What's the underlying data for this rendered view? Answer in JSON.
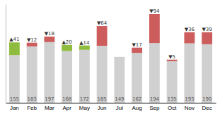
{
  "chart_data": {
    "type": "bar",
    "stacked": true,
    "data_labels": true,
    "tick_labels": "x",
    "categories": [
      "Jan",
      "Feb",
      "Mar",
      "Apr",
      "May",
      "Jun",
      "Jul",
      "Aug",
      "Sep",
      "Oct",
      "Nov",
      "Dec"
    ],
    "ylim": [
      0,
      320
    ],
    "series": [
      {
        "color": "#d0d0d0",
        "values": [
          155,
          183,
          197,
          168,
          172,
          185,
          149,
          162,
          194,
          135,
          193,
          190
        ]
      },
      {
        "colors": [
          "#8fbc3f",
          "#cd5c5c",
          "#cd5c5c",
          "#8fbc3f",
          "#8fbc3f",
          "#cd5c5c",
          "#8fbc3f",
          "#cd5c5c",
          "#cd5c5c",
          "#cd5c5c",
          "#cd5c5c",
          "#cd5c5c"
        ],
        "values": [
          41,
          12,
          18,
          20,
          14,
          64,
          0,
          17,
          94,
          5,
          36,
          39
        ],
        "value_labels": [
          "▲41",
          "▼12",
          "▼18",
          "▲20",
          "▲14",
          "▼64",
          null,
          "▼17",
          "▼94",
          "▼5",
          "▼36",
          "▼39"
        ]
      }
    ]
  }
}
